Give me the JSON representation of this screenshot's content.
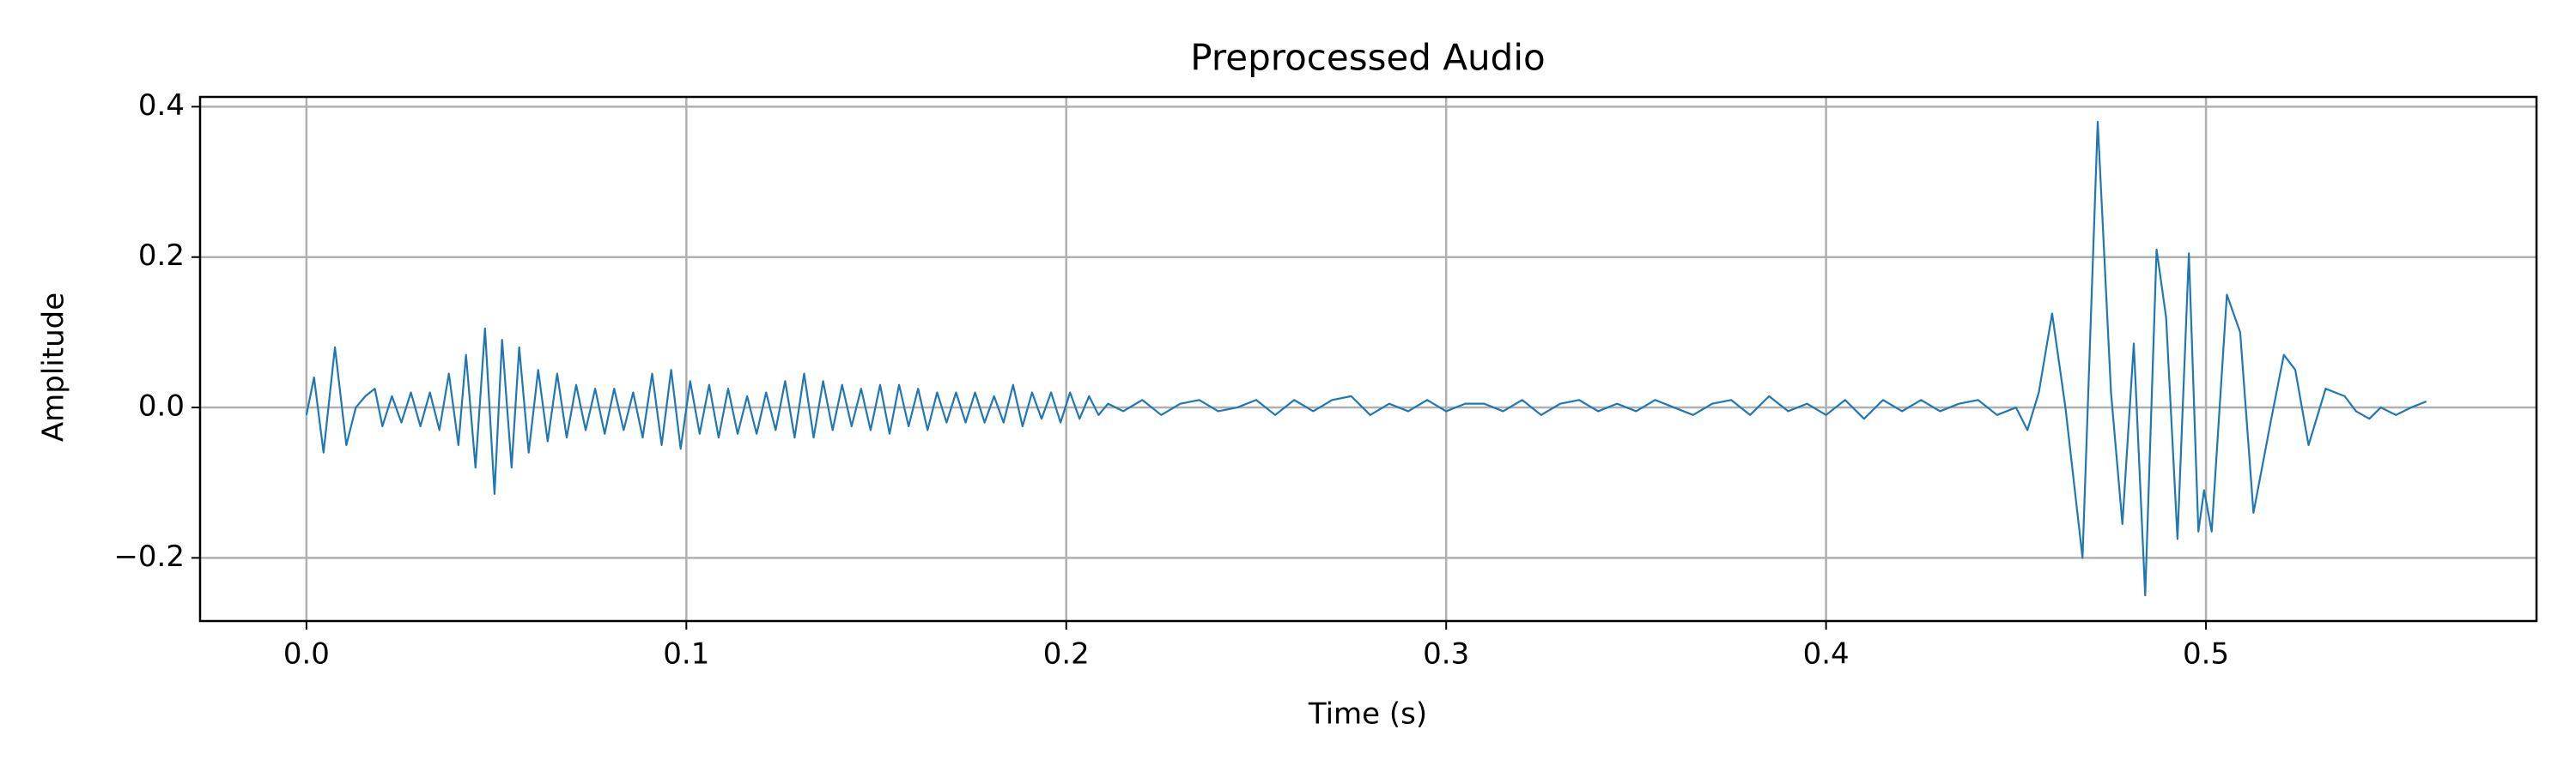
{
  "chart_data": {
    "type": "line",
    "title": "Preprocessed Audio",
    "xlabel": "Time (s)",
    "ylabel": "Amplitude",
    "color": "#1f77b4",
    "grid": true,
    "xlim": [
      -0.028,
      0.587
    ],
    "ylim": [
      -0.284,
      0.413
    ],
    "xticks": [
      {
        "value": 0,
        "label": "0.0"
      },
      0.1,
      0.2,
      0.3,
      0.4,
      0.5
    ],
    "yticks": [
      {
        "value": -0.2,
        "label": "−0.2"
      },
      {
        "value": 0,
        "label": "0.0"
      },
      0.2,
      0.4
    ],
    "x": [
      0.0,
      0.002,
      0.0045,
      0.0075,
      0.0105,
      0.013,
      0.0155,
      0.018,
      0.02,
      0.0225,
      0.025,
      0.0275,
      0.03,
      0.0325,
      0.035,
      0.0375,
      0.04,
      0.042,
      0.0445,
      0.047,
      0.0495,
      0.0515,
      0.054,
      0.056,
      0.0585,
      0.061,
      0.0635,
      0.066,
      0.0685,
      0.071,
      0.0735,
      0.076,
      0.0785,
      0.081,
      0.0835,
      0.086,
      0.0885,
      0.091,
      0.0935,
      0.096,
      0.0985,
      0.101,
      0.1035,
      0.106,
      0.1085,
      0.111,
      0.1135,
      0.116,
      0.1185,
      0.121,
      0.1235,
      0.126,
      0.1285,
      0.131,
      0.1335,
      0.136,
      0.1385,
      0.141,
      0.1435,
      0.146,
      0.1485,
      0.151,
      0.1535,
      0.156,
      0.1585,
      0.161,
      0.1635,
      0.166,
      0.1685,
      0.171,
      0.1735,
      0.176,
      0.1785,
      0.181,
      0.1835,
      0.186,
      0.1885,
      0.191,
      0.1935,
      0.196,
      0.1985,
      0.201,
      0.2035,
      0.206,
      0.2085,
      0.211,
      0.215,
      0.22,
      0.225,
      0.23,
      0.235,
      0.24,
      0.245,
      0.25,
      0.255,
      0.26,
      0.265,
      0.27,
      0.275,
      0.28,
      0.285,
      0.29,
      0.295,
      0.3,
      0.305,
      0.31,
      0.315,
      0.32,
      0.325,
      0.33,
      0.335,
      0.34,
      0.345,
      0.35,
      0.355,
      0.36,
      0.365,
      0.37,
      0.375,
      0.38,
      0.385,
      0.39,
      0.395,
      0.4,
      0.405,
      0.41,
      0.415,
      0.42,
      0.425,
      0.43,
      0.435,
      0.44,
      0.445,
      0.45,
      0.453,
      0.456,
      0.4595,
      0.463,
      0.4675,
      0.4715,
      0.475,
      0.478,
      0.481,
      0.484,
      0.487,
      0.4895,
      0.4925,
      0.4955,
      0.498,
      0.4995,
      0.5015,
      0.5055,
      0.509,
      0.5125,
      0.517,
      0.5205,
      0.5235,
      0.527,
      0.5315,
      0.5365,
      0.5395,
      0.543,
      0.546,
      0.55,
      0.554,
      0.558
    ],
    "values": [
      -0.01,
      0.04,
      -0.06,
      0.08,
      -0.05,
      0.0,
      0.015,
      0.025,
      -0.025,
      0.015,
      -0.02,
      0.02,
      -0.025,
      0.02,
      -0.03,
      0.045,
      -0.05,
      0.07,
      -0.08,
      0.105,
      -0.115,
      0.09,
      -0.08,
      0.08,
      -0.06,
      0.05,
      -0.045,
      0.045,
      -0.04,
      0.03,
      -0.03,
      0.025,
      -0.035,
      0.025,
      -0.03,
      0.02,
      -0.04,
      0.045,
      -0.05,
      0.05,
      -0.055,
      0.035,
      -0.035,
      0.03,
      -0.04,
      0.025,
      -0.035,
      0.015,
      -0.035,
      0.02,
      -0.03,
      0.035,
      -0.04,
      0.045,
      -0.04,
      0.035,
      -0.03,
      0.03,
      -0.025,
      0.025,
      -0.03,
      0.03,
      -0.035,
      0.03,
      -0.025,
      0.025,
      -0.03,
      0.02,
      -0.02,
      0.02,
      -0.02,
      0.02,
      -0.02,
      0.015,
      -0.02,
      0.03,
      -0.025,
      0.02,
      -0.015,
      0.02,
      -0.02,
      0.02,
      -0.015,
      0.015,
      -0.01,
      0.005,
      -0.005,
      0.01,
      -0.01,
      0.005,
      0.01,
      -0.005,
      0.0,
      0.01,
      -0.01,
      0.01,
      -0.005,
      0.01,
      0.015,
      -0.01,
      0.005,
      -0.005,
      0.01,
      -0.005,
      0.005,
      0.005,
      -0.005,
      0.01,
      -0.01,
      0.005,
      0.01,
      -0.005,
      0.005,
      -0.005,
      0.01,
      0.0,
      -0.01,
      0.005,
      0.01,
      -0.01,
      0.015,
      -0.005,
      0.005,
      -0.01,
      0.01,
      -0.015,
      0.01,
      -0.005,
      0.01,
      -0.005,
      0.005,
      0.01,
      -0.01,
      0.0,
      -0.03,
      0.02,
      0.125,
      0.0,
      -0.2,
      0.38,
      0.02,
      -0.155,
      0.085,
      -0.25,
      0.21,
      0.12,
      -0.175,
      0.205,
      -0.165,
      -0.11,
      -0.165,
      0.15,
      0.1,
      -0.14,
      -0.02,
      0.07,
      0.05,
      -0.05,
      0.025,
      0.015,
      -0.005,
      -0.015,
      0.0,
      -0.01,
      0.0,
      0.008
    ]
  }
}
